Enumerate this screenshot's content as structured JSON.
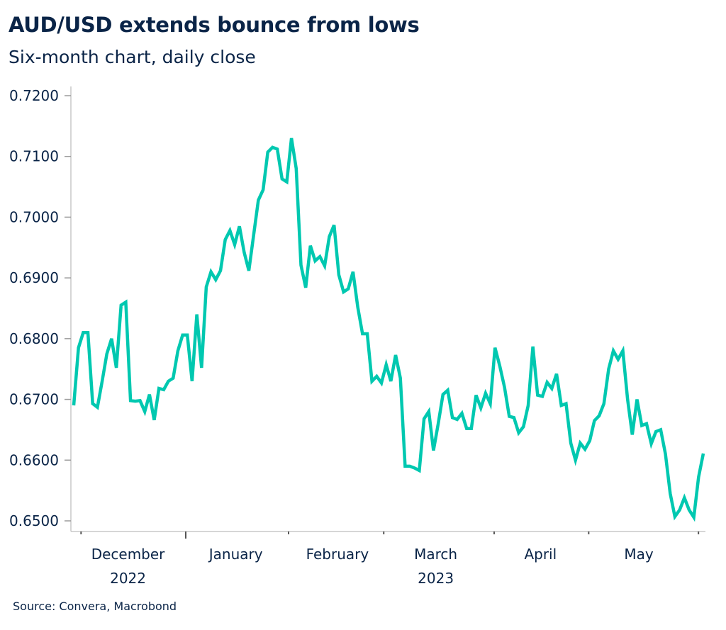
{
  "title": "AUD/USD extends bounce from lows",
  "subtitle": "Six-month chart, daily close",
  "source": "Source: Convera, Macrobond",
  "colors": {
    "line": "#00c8b0",
    "text": "#0a2447",
    "axis": "#c8c8c8"
  },
  "chart_data": {
    "type": "line",
    "title": "AUD/USD extends bounce from lows",
    "subtitle": "Six-month chart, daily close",
    "xlabel": "",
    "ylabel": "",
    "ylim": [
      0.6485,
      0.7225
    ],
    "grid": false,
    "legend": "none",
    "yticks": [
      "0.7200",
      "0.7100",
      "0.7000",
      "0.6900",
      "0.6800",
      "0.6700",
      "0.6600",
      "0.6500"
    ],
    "ytick_values": [
      0.72,
      0.71,
      0.7,
      0.69,
      0.68,
      0.67,
      0.66,
      0.65
    ],
    "xticks": [
      {
        "label": "December",
        "year": "2022",
        "pos": 0.09
      },
      {
        "label": "January",
        "year": "",
        "pos": 0.26
      },
      {
        "label": "February",
        "year": "",
        "pos": 0.42
      },
      {
        "label": "March",
        "year": "2023",
        "pos": 0.575
      },
      {
        "label": "April",
        "year": "",
        "pos": 0.74
      },
      {
        "label": "May",
        "year": "",
        "pos": 0.895
      }
    ],
    "tick_marks": [
      0.016,
      0.181,
      0.343,
      0.493,
      0.667,
      0.816,
      0.989
    ],
    "major_tick_marks": [
      0.181
    ],
    "series": [
      {
        "name": "AUD/USD",
        "values": [
          0.669,
          0.6785,
          0.681,
          0.681,
          0.6693,
          0.6687,
          0.673,
          0.6775,
          0.68,
          0.6752,
          0.6855,
          0.686,
          0.6698,
          0.6697,
          0.6698,
          0.668,
          0.6708,
          0.6666,
          0.6718,
          0.6716,
          0.673,
          0.6735,
          0.678,
          0.6806,
          0.6806,
          0.673,
          0.684,
          0.6752,
          0.6885,
          0.691,
          0.6897,
          0.6912,
          0.6963,
          0.6978,
          0.6955,
          0.6985,
          0.6942,
          0.6912,
          0.697,
          0.7028,
          0.7045,
          0.7107,
          0.7115,
          0.7112,
          0.7063,
          0.7058,
          0.713,
          0.708,
          0.6921,
          0.6884,
          0.6953,
          0.6928,
          0.6935,
          0.692,
          0.6968,
          0.6987,
          0.6905,
          0.6877,
          0.6882,
          0.691,
          0.6852,
          0.6808,
          0.6808,
          0.673,
          0.6738,
          0.6727,
          0.6757,
          0.673,
          0.6773,
          0.6735,
          0.659,
          0.659,
          0.6587,
          0.6583,
          0.6668,
          0.668,
          0.6616,
          0.666,
          0.6708,
          0.6715,
          0.667,
          0.6667,
          0.6677,
          0.6652,
          0.6652,
          0.6707,
          0.6686,
          0.671,
          0.6693,
          0.6785,
          0.6755,
          0.672,
          0.6672,
          0.667,
          0.6645,
          0.6655,
          0.669,
          0.6787,
          0.6707,
          0.6705,
          0.6728,
          0.6718,
          0.6742,
          0.669,
          0.6693,
          0.6628,
          0.66,
          0.6628,
          0.6618,
          0.6632,
          0.6665,
          0.6673,
          0.6693,
          0.675,
          0.678,
          0.6766,
          0.678,
          0.67,
          0.6642,
          0.67,
          0.6657,
          0.666,
          0.6627,
          0.6647,
          0.665,
          0.661,
          0.6545,
          0.6507,
          0.6518,
          0.6538,
          0.6518,
          0.6506,
          0.6572,
          0.6611
        ]
      }
    ]
  }
}
